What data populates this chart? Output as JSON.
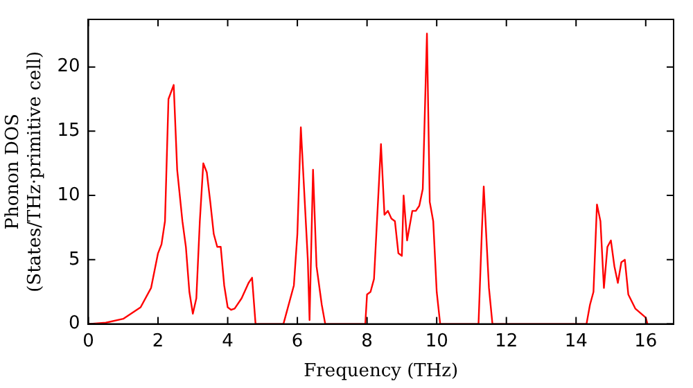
{
  "chart_data": {
    "type": "line",
    "xlabel": "Frequency (THz)",
    "ylabel": "Phonon DOS\n(States/THz·primitive cell)",
    "color": "#ff0000",
    "marker": "none",
    "grid": false,
    "legend": false,
    "x": [
      0,
      0.5,
      1,
      1.5,
      1.8,
      2.0,
      2.1,
      2.2,
      2.3,
      2.45,
      2.55,
      2.7,
      2.8,
      2.9,
      3.0,
      3.1,
      3.2,
      3.3,
      3.4,
      3.5,
      3.6,
      3.7,
      3.8,
      3.9,
      4.0,
      4.1,
      4.2,
      4.4,
      4.6,
      4.7,
      4.8,
      5.6,
      5.9,
      6.0,
      6.1,
      6.3,
      6.35,
      6.45,
      6.55,
      6.7,
      6.8,
      7.95,
      8.0,
      8.1,
      8.2,
      8.4,
      8.5,
      8.6,
      8.7,
      8.8,
      8.9,
      9.0,
      9.05,
      9.15,
      9.3,
      9.4,
      9.5,
      9.6,
      9.72,
      9.8,
      9.9,
      10.0,
      10.1,
      11.2,
      11.3,
      11.35,
      11.5,
      11.6,
      14.3,
      14.4,
      14.5,
      14.6,
      14.7,
      14.8,
      14.9,
      15.0,
      15.1,
      15.2,
      15.3,
      15.4,
      15.5,
      15.7,
      16.0,
      16.05
    ],
    "values": [
      0,
      0.1,
      0.4,
      1.3,
      2.8,
      5.5,
      6.2,
      8,
      17.5,
      18.6,
      12,
      8,
      6,
      2.5,
      0.8,
      2,
      8,
      12.5,
      11.8,
      9.5,
      7,
      6,
      6,
      3,
      1.3,
      1.1,
      1.2,
      2,
      3.2,
      3.6,
      0,
      0,
      3,
      7,
      15.3,
      5,
      0.3,
      12,
      4.5,
      1.5,
      0,
      0,
      2.3,
      2.5,
      3.5,
      14,
      8.5,
      8.8,
      8.2,
      8,
      5.5,
      5.3,
      10,
      6.5,
      8.8,
      8.8,
      9.2,
      10.5,
      22.6,
      9.5,
      8,
      2.5,
      0,
      0,
      7.5,
      10.7,
      2.8,
      0,
      0,
      1.5,
      2.5,
      9.3,
      8,
      2.8,
      6,
      6.5,
      4.5,
      3.2,
      4.8,
      5,
      2.3,
      1.2,
      0.5,
      0
    ],
    "xlim": [
      0,
      16.8
    ],
    "ylim": [
      0,
      23.7
    ],
    "xticks": [
      0,
      2,
      4,
      6,
      8,
      10,
      12,
      14,
      16
    ],
    "yticks": [
      0,
      5,
      10,
      15,
      20
    ]
  }
}
